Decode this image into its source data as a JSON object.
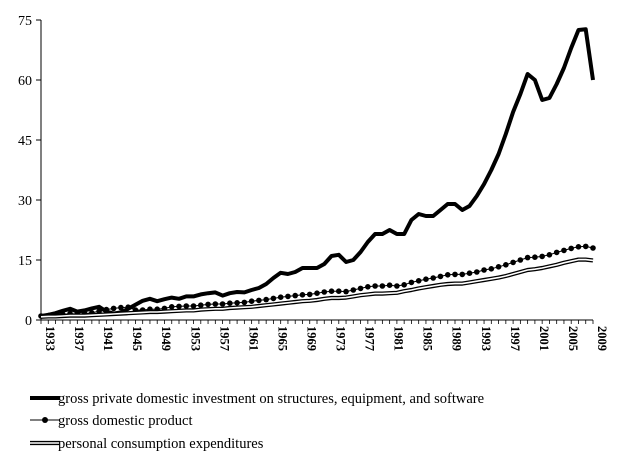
{
  "chart_data": {
    "type": "line",
    "title": "",
    "xlabel": "",
    "ylabel": "",
    "xlim": [
      1933,
      2009
    ],
    "ylim": [
      0,
      75
    ],
    "yticks": [
      0,
      15,
      30,
      45,
      60,
      75
    ],
    "xticks": [
      1933,
      1937,
      1941,
      1945,
      1949,
      1953,
      1957,
      1961,
      1965,
      1969,
      1973,
      1977,
      1981,
      1985,
      1989,
      1993,
      1997,
      2001,
      2005,
      2009
    ],
    "grid": "none",
    "legend_position": "bottom",
    "x": [
      1933,
      1934,
      1935,
      1936,
      1937,
      1938,
      1939,
      1940,
      1941,
      1942,
      1943,
      1944,
      1945,
      1946,
      1947,
      1948,
      1949,
      1950,
      1951,
      1952,
      1953,
      1954,
      1955,
      1956,
      1957,
      1958,
      1959,
      1960,
      1961,
      1962,
      1963,
      1964,
      1965,
      1966,
      1967,
      1968,
      1969,
      1970,
      1971,
      1972,
      1973,
      1974,
      1975,
      1976,
      1977,
      1978,
      1979,
      1980,
      1981,
      1982,
      1983,
      1984,
      1985,
      1986,
      1987,
      1988,
      1989,
      1990,
      1991,
      1992,
      1993,
      1994,
      1995,
      1996,
      1997,
      1998,
      1999,
      2000,
      2001,
      2002,
      2003,
      2004,
      2005,
      2006,
      2007,
      2008,
      2009
    ],
    "series": [
      {
        "name": "gross private domestic investment on structures, equipment, and software",
        "style": "thick",
        "values": [
          1.0,
          1.3,
          1.7,
          2.3,
          2.8,
          2.1,
          2.4,
          2.9,
          3.3,
          2.1,
          1.6,
          1.9,
          2.8,
          3.8,
          4.8,
          5.3,
          4.7,
          5.2,
          5.6,
          5.3,
          5.9,
          5.9,
          6.4,
          6.7,
          6.9,
          6.1,
          6.7,
          7.0,
          6.9,
          7.5,
          8.0,
          9.0,
          10.5,
          11.8,
          11.5,
          12.0,
          13.0,
          13.0,
          13.0,
          14.0,
          16.0,
          16.3,
          14.5,
          15.0,
          17.0,
          19.5,
          21.5,
          21.5,
          22.5,
          21.5,
          21.5,
          25.0,
          26.5,
          26.0,
          26.0,
          27.5,
          29.0,
          29.0,
          27.5,
          28.5,
          31.0,
          34.0,
          37.5,
          41.5,
          46.5,
          52.0,
          56.5,
          61.5,
          60.0,
          55.0,
          55.5,
          59.0,
          63.0,
          68.0,
          72.5,
          72.7,
          60.0
        ]
      },
      {
        "name": "gross domestic product",
        "style": "dotted",
        "values": [
          1.0,
          1.1,
          1.3,
          1.4,
          1.6,
          1.5,
          1.6,
          1.8,
          2.2,
          2.6,
          2.9,
          3.1,
          3.2,
          2.5,
          2.5,
          2.7,
          2.7,
          2.9,
          3.3,
          3.4,
          3.5,
          3.5,
          3.7,
          3.9,
          4.0,
          4.0,
          4.2,
          4.3,
          4.4,
          4.7,
          4.9,
          5.1,
          5.4,
          5.7,
          5.9,
          6.1,
          6.3,
          6.4,
          6.7,
          7.0,
          7.2,
          7.2,
          7.1,
          7.5,
          7.9,
          8.3,
          8.5,
          8.5,
          8.7,
          8.5,
          8.8,
          9.4,
          9.8,
          10.2,
          10.5,
          10.9,
          11.3,
          11.4,
          11.4,
          11.7,
          12.0,
          12.5,
          12.8,
          13.3,
          13.8,
          14.4,
          15.0,
          15.6,
          15.7,
          15.9,
          16.3,
          16.9,
          17.4,
          17.9,
          18.3,
          18.4,
          18.0
        ]
      },
      {
        "name": "personal consumption expenditures",
        "style": "double",
        "values": [
          0.8,
          0.9,
          0.9,
          1.0,
          1.1,
          1.1,
          1.1,
          1.2,
          1.3,
          1.4,
          1.5,
          1.6,
          1.7,
          1.8,
          1.9,
          2.0,
          2.0,
          2.1,
          2.2,
          2.3,
          2.4,
          2.4,
          2.6,
          2.7,
          2.8,
          2.8,
          3.0,
          3.1,
          3.2,
          3.3,
          3.5,
          3.7,
          3.9,
          4.1,
          4.3,
          4.5,
          4.7,
          4.8,
          5.0,
          5.3,
          5.5,
          5.5,
          5.6,
          5.9,
          6.2,
          6.4,
          6.6,
          6.6,
          6.7,
          6.8,
          7.2,
          7.5,
          7.9,
          8.2,
          8.5,
          8.8,
          9.0,
          9.1,
          9.1,
          9.4,
          9.7,
          10.0,
          10.3,
          10.6,
          11.0,
          11.5,
          12.0,
          12.5,
          12.7,
          13.0,
          13.4,
          13.8,
          14.3,
          14.7,
          15.1,
          15.1,
          14.9
        ]
      }
    ]
  }
}
